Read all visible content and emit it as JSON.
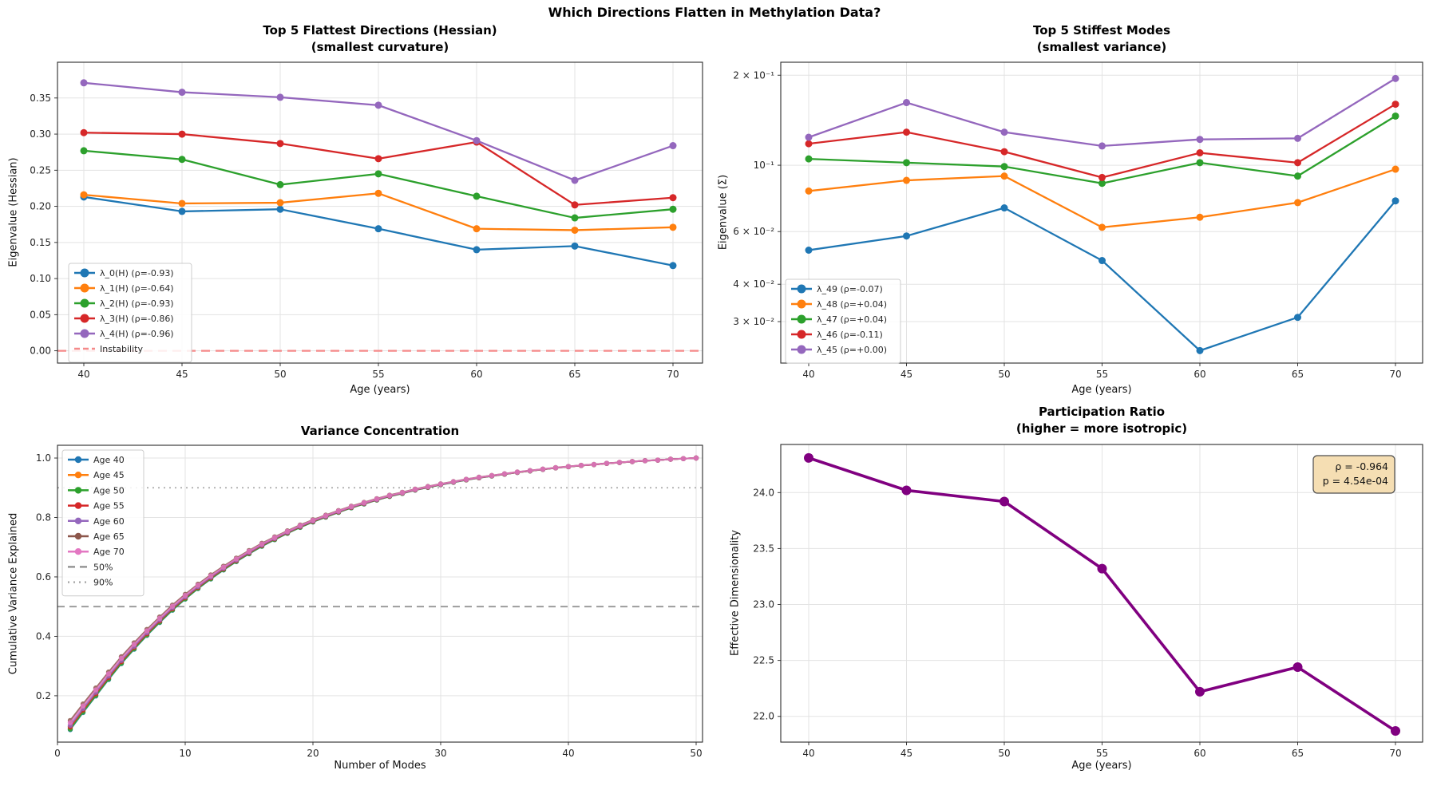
{
  "suptitle": "Which Directions Flatten in Methylation Data?",
  "chart_data": {
    "flattest": {
      "type": "line",
      "title": "Top 5 Flattest Directions (Hessian)\n(smallest curvature)",
      "xlabel": "Age (years)",
      "ylabel": "Eigenvalue (Hessian)",
      "x": [
        40,
        45,
        50,
        55,
        60,
        65,
        70
      ],
      "xticks": [
        {
          "v": 40,
          "label": "40"
        },
        {
          "v": 45,
          "label": "45"
        },
        {
          "v": 50,
          "label": "50"
        },
        {
          "v": 55,
          "label": "55"
        },
        {
          "v": 60,
          "label": "60"
        },
        {
          "v": 65,
          "label": "65"
        },
        {
          "v": 70,
          "label": "70"
        }
      ],
      "yticks": [
        {
          "v": 0.0,
          "label": "0.00"
        },
        {
          "v": 0.05,
          "label": "0.05"
        },
        {
          "v": 0.1,
          "label": "0.10"
        },
        {
          "v": 0.15,
          "label": "0.15"
        },
        {
          "v": 0.2,
          "label": "0.20"
        },
        {
          "v": 0.25,
          "label": "0.25"
        },
        {
          "v": 0.3,
          "label": "0.30"
        },
        {
          "v": 0.35,
          "label": "0.35"
        }
      ],
      "ylim": [
        -0.017,
        0.3995
      ],
      "grid": true,
      "legend_position": "lower left",
      "series": [
        {
          "name": "λ_0(H) (ρ=-0.93)",
          "color": "#1f77b4",
          "values": [
            0.213,
            0.193,
            0.196,
            0.169,
            0.14,
            0.145,
            0.118
          ]
        },
        {
          "name": "λ_1(H) (ρ=-0.64)",
          "color": "#ff7f0e",
          "values": [
            0.216,
            0.204,
            0.205,
            0.218,
            0.169,
            0.167,
            0.171
          ]
        },
        {
          "name": "λ_2(H) (ρ=-0.93)",
          "color": "#2ca02c",
          "values": [
            0.277,
            0.265,
            0.23,
            0.245,
            0.214,
            0.184,
            0.196
          ]
        },
        {
          "name": "λ_3(H) (ρ=-0.86)",
          "color": "#d62728",
          "values": [
            0.302,
            0.3,
            0.287,
            0.266,
            0.289,
            0.202,
            0.212
          ]
        },
        {
          "name": "λ_4(H) (ρ=-0.96)",
          "color": "#9467bd",
          "values": [
            0.371,
            0.358,
            0.351,
            0.34,
            0.291,
            0.236,
            0.284
          ]
        }
      ],
      "hline": {
        "y": 0.0,
        "label": "Instability",
        "color": "#f58a8a",
        "dash": "11 7"
      }
    },
    "stiffest": {
      "type": "line",
      "yscale": "log",
      "title": "Top 5 Stiffest Modes\n(smallest variance)",
      "xlabel": "Age (years)",
      "ylabel": "Eigenvalue (Σ)",
      "x": [
        40,
        45,
        50,
        55,
        60,
        65,
        70
      ],
      "xticks": [
        {
          "v": 40,
          "label": "40"
        },
        {
          "v": 45,
          "label": "45"
        },
        {
          "v": 50,
          "label": "50"
        },
        {
          "v": 55,
          "label": "55"
        },
        {
          "v": 60,
          "label": "60"
        },
        {
          "v": 65,
          "label": "65"
        },
        {
          "v": 70,
          "label": "70"
        }
      ],
      "yticks": [
        {
          "v": 0.2,
          "label": "2 × 10⁻¹"
        },
        {
          "v": 0.1,
          "label": "10⁻¹"
        },
        {
          "v": 0.06,
          "label": "6 × 10⁻²"
        },
        {
          "v": 0.04,
          "label": "4 × 10⁻²"
        },
        {
          "v": 0.03,
          "label": "3 × 10⁻²"
        }
      ],
      "ylim": [
        0.0218,
        0.221
      ],
      "grid": true,
      "legend_position": "lower left",
      "series": [
        {
          "name": "λ_49 (ρ=-0.07)",
          "color": "#1f77b4",
          "values": [
            0.052,
            0.058,
            0.072,
            0.048,
            0.024,
            0.031,
            0.076
          ]
        },
        {
          "name": "λ_48 (ρ=+0.04)",
          "color": "#ff7f0e",
          "values": [
            0.082,
            0.089,
            0.092,
            0.062,
            0.067,
            0.075,
            0.097
          ]
        },
        {
          "name": "λ_47 (ρ=+0.04)",
          "color": "#2ca02c",
          "values": [
            0.105,
            0.102,
            0.099,
            0.087,
            0.102,
            0.092,
            0.146
          ]
        },
        {
          "name": "λ_46 (ρ=-0.11)",
          "color": "#d62728",
          "values": [
            0.118,
            0.129,
            0.111,
            0.091,
            0.11,
            0.102,
            0.16
          ]
        },
        {
          "name": "λ_45 (ρ=+0.00)",
          "color": "#9467bd",
          "values": [
            0.124,
            0.162,
            0.129,
            0.116,
            0.122,
            0.123,
            0.195
          ]
        }
      ]
    },
    "variance": {
      "type": "line",
      "title": "Variance Concentration",
      "xlabel": "Number of Modes",
      "ylabel": "Cumulative Variance Explained",
      "x": [
        1,
        2,
        3,
        4,
        5,
        6,
        7,
        8,
        9,
        10,
        11,
        12,
        13,
        14,
        15,
        16,
        17,
        18,
        19,
        20,
        21,
        22,
        23,
        24,
        25,
        26,
        27,
        28,
        29,
        30,
        31,
        32,
        33,
        34,
        35,
        36,
        37,
        38,
        39,
        40,
        41,
        42,
        43,
        44,
        45,
        46,
        47,
        48,
        49,
        50
      ],
      "xticks": [
        {
          "v": 0,
          "label": "0"
        },
        {
          "v": 10,
          "label": "10"
        },
        {
          "v": 20,
          "label": "20"
        },
        {
          "v": 30,
          "label": "30"
        },
        {
          "v": 40,
          "label": "40"
        },
        {
          "v": 50,
          "label": "50"
        }
      ],
      "yticks": [
        {
          "v": 0.2,
          "label": "0.2"
        },
        {
          "v": 0.4,
          "label": "0.4"
        },
        {
          "v": 0.6,
          "label": "0.6"
        },
        {
          "v": 0.8,
          "label": "0.8"
        },
        {
          "v": 1.0,
          "label": "1.0"
        }
      ],
      "ylim": [
        0.044,
        1.043
      ],
      "grid": true,
      "legend_position": "upper left",
      "base": [
        0.095,
        0.152,
        0.207,
        0.262,
        0.315,
        0.363,
        0.409,
        0.452,
        0.493,
        0.53,
        0.565,
        0.597,
        0.627,
        0.655,
        0.681,
        0.706,
        0.728,
        0.749,
        0.769,
        0.787,
        0.803,
        0.819,
        0.834,
        0.847,
        0.86,
        0.872,
        0.882,
        0.893,
        0.902,
        0.911,
        0.919,
        0.927,
        0.934,
        0.94,
        0.946,
        0.952,
        0.957,
        0.962,
        0.967,
        0.971,
        0.975,
        0.978,
        0.982,
        0.985,
        0.988,
        0.991,
        0.993,
        0.996,
        0.998,
        1.0
      ],
      "series": [
        {
          "name": "Age 40",
          "color": "#1f77b4",
          "offset": -0.005
        },
        {
          "name": "Age 45",
          "color": "#ff7f0e",
          "offset": -0.002
        },
        {
          "name": "Age 50",
          "color": "#2ca02c",
          "offset": -0.004
        },
        {
          "name": "Age 55",
          "color": "#d62728",
          "offset": 0.0
        },
        {
          "name": "Age 60",
          "color": "#9467bd",
          "offset": 0.003
        },
        {
          "name": "Age 65",
          "color": "#8c564b",
          "offset": 0.012
        },
        {
          "name": "Age 70",
          "color": "#e377c2",
          "offset": 0.008
        }
      ],
      "reflines": [
        {
          "y": 0.5,
          "label": "50%",
          "color": "#969696",
          "dash": "9 6"
        },
        {
          "y": 0.9,
          "label": "90%",
          "color": "#ababab",
          "dash": "2 5"
        }
      ]
    },
    "participation": {
      "type": "line",
      "title": "Participation Ratio\n(higher = more isotropic)",
      "xlabel": "Age (years)",
      "ylabel": "Effective Dimensionality",
      "x": [
        40,
        45,
        50,
        55,
        60,
        65,
        70
      ],
      "xticks": [
        {
          "v": 40,
          "label": "40"
        },
        {
          "v": 45,
          "label": "45"
        },
        {
          "v": 50,
          "label": "50"
        },
        {
          "v": 55,
          "label": "55"
        },
        {
          "v": 60,
          "label": "60"
        },
        {
          "v": 65,
          "label": "65"
        },
        {
          "v": 70,
          "label": "70"
        }
      ],
      "yticks": [
        {
          "v": 22.0,
          "label": "22.0"
        },
        {
          "v": 22.5,
          "label": "22.5"
        },
        {
          "v": 23.0,
          "label": "23.0"
        },
        {
          "v": 23.5,
          "label": "23.5"
        },
        {
          "v": 24.0,
          "label": "24.0"
        }
      ],
      "ylim": [
        21.77,
        24.43
      ],
      "grid": true,
      "series": [
        {
          "name": "Participation Ratio",
          "color": "#800080",
          "values": [
            24.31,
            24.02,
            23.92,
            23.32,
            22.22,
            22.44,
            21.87
          ]
        }
      ],
      "annotation": {
        "lines": [
          "ρ = -0.964",
          "p = 4.54e-04"
        ],
        "bg": "#f5deb3",
        "border": "#4d4d4d"
      }
    }
  }
}
